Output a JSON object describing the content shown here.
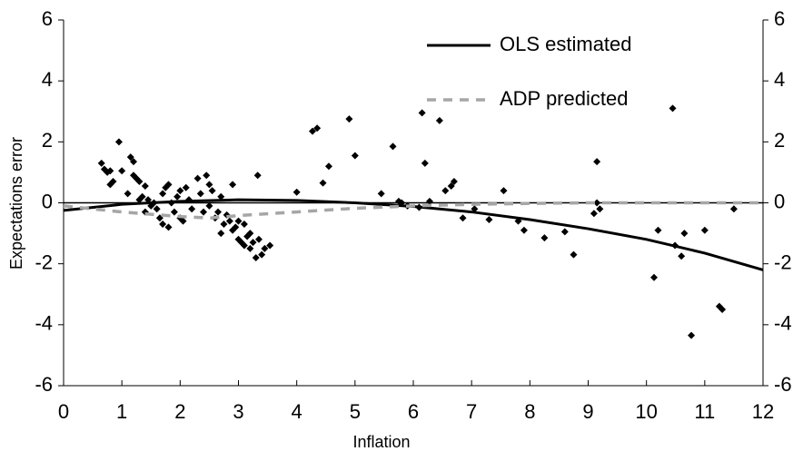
{
  "chart_data": {
    "type": "scatter",
    "x_label": "Inflation",
    "y_label": "Expectations error",
    "xlim": [
      0,
      12
    ],
    "xticks": [
      0,
      1,
      2,
      3,
      4,
      5,
      6,
      7,
      8,
      9,
      10,
      11,
      12
    ],
    "ylim": [
      -6,
      6
    ],
    "yticks": [
      -6,
      -4,
      -2,
      0,
      2,
      4,
      6
    ],
    "y2lim": [
      -6,
      6
    ],
    "y2ticks": [
      -6,
      -4,
      -2,
      0,
      2,
      4,
      6
    ],
    "series": [
      {
        "type": "scatter",
        "color": "#000000",
        "x": [
          0.65,
          0.7,
          0.75,
          0.8,
          0.8,
          0.85,
          0.95,
          1.0,
          1.1,
          1.15,
          1.2,
          1.2,
          1.25,
          1.3,
          1.3,
          1.35,
          1.4,
          1.4,
          1.45,
          1.5,
          1.55,
          1.6,
          1.65,
          1.7,
          1.7,
          1.75,
          1.8,
          1.8,
          1.85,
          1.9,
          1.95,
          2.0,
          2.0,
          2.05,
          2.1,
          2.15,
          2.2,
          2.3,
          2.35,
          2.4,
          2.45,
          2.5,
          2.5,
          2.55,
          2.6,
          2.65,
          2.7,
          2.7,
          2.75,
          2.8,
          2.85,
          2.9,
          2.9,
          2.95,
          3.0,
          3.0,
          3.05,
          3.1,
          3.1,
          3.15,
          3.2,
          3.2,
          3.25,
          3.3,
          3.33,
          3.35,
          3.4,
          3.45,
          3.54,
          4.0,
          4.27,
          4.35,
          4.45,
          4.55,
          4.9,
          5.0,
          5.45,
          5.65,
          5.75,
          5.9,
          5.8,
          6.15,
          6.1,
          6.2,
          6.28,
          6.45,
          6.55,
          6.65,
          6.7,
          6.85,
          7.05,
          7.3,
          7.55,
          7.8,
          7.9,
          8.25,
          8.6,
          8.75,
          9.1,
          9.15,
          9.15,
          9.2,
          10.13,
          10.2,
          10.45,
          10.49,
          10.6,
          10.65,
          10.77,
          11.0,
          11.25,
          11.3,
          11.5
        ],
        "values": [
          1.3,
          1.1,
          1.0,
          1.05,
          0.6,
          0.7,
          2.0,
          1.05,
          0.3,
          1.5,
          1.35,
          0.9,
          0.8,
          0.7,
          0.1,
          0.2,
          0.55,
          -0.3,
          0.1,
          -0.1,
          0.0,
          -0.2,
          -0.5,
          -0.7,
          0.3,
          0.5,
          -0.8,
          0.6,
          0.0,
          -0.3,
          0.2,
          -0.5,
          0.4,
          -0.6,
          0.5,
          0.1,
          -0.2,
          0.8,
          0.3,
          -0.3,
          0.9,
          0.6,
          -0.1,
          0.4,
          -0.5,
          -0.3,
          0.2,
          -1.0,
          -0.7,
          -0.4,
          -0.6,
          0.6,
          -0.9,
          -0.8,
          -0.6,
          -1.2,
          -1.3,
          -0.7,
          -1.4,
          -1.1,
          -1.0,
          -1.5,
          -1.3,
          -1.8,
          0.9,
          -1.2,
          -1.7,
          -1.5,
          -1.4,
          0.35,
          2.35,
          2.45,
          0.65,
          1.2,
          2.75,
          1.55,
          0.3,
          1.85,
          0.05,
          -0.1,
          0.0,
          2.95,
          -0.15,
          1.3,
          0.05,
          2.7,
          0.4,
          0.55,
          0.7,
          -0.5,
          -0.2,
          -0.55,
          0.4,
          -0.6,
          -0.9,
          -1.15,
          -0.95,
          -1.7,
          -0.35,
          0.0,
          1.35,
          -0.2,
          -2.45,
          -0.9,
          3.1,
          -1.4,
          -1.75,
          -1.0,
          -4.35,
          -0.9,
          -3.4,
          -3.5,
          -0.2
        ]
      },
      {
        "type": "line",
        "name": "OLS estimated",
        "color": "#000000",
        "dash": false,
        "x": [
          0,
          1,
          2,
          3,
          4,
          5,
          6,
          7,
          8,
          9,
          10,
          11,
          12
        ],
        "values": [
          -0.25,
          -0.05,
          0.05,
          0.1,
          0.08,
          0.0,
          -0.12,
          -0.3,
          -0.55,
          -0.85,
          -1.2,
          -1.65,
          -2.2
        ]
      },
      {
        "type": "line",
        "name": "ADP predicted",
        "color": "#a6a6a6",
        "dash": true,
        "x": [
          0,
          1,
          2,
          2.5,
          3,
          4,
          5,
          6,
          7,
          8,
          9,
          10,
          11,
          12
        ],
        "values": [
          -0.1,
          -0.3,
          -0.45,
          -0.5,
          -0.42,
          -0.3,
          -0.18,
          -0.1,
          -0.05,
          -0.02,
          0,
          0,
          0,
          0
        ]
      }
    ]
  }
}
